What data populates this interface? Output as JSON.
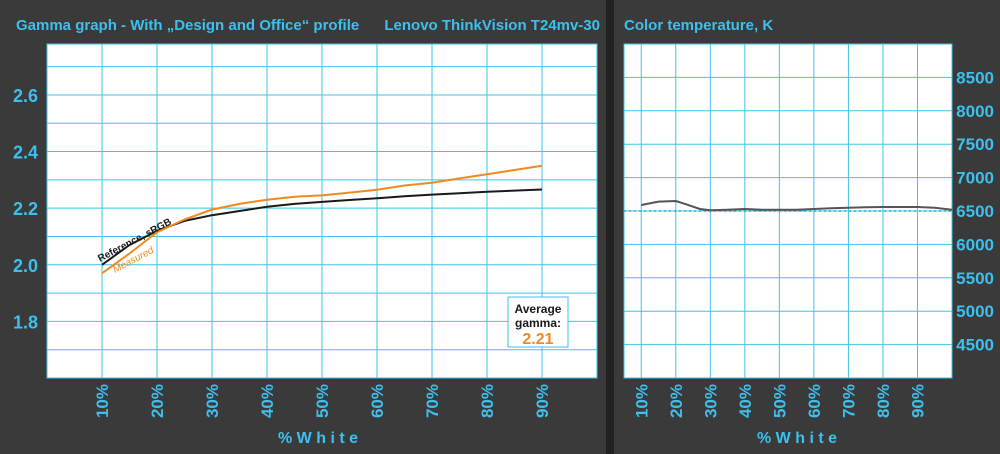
{
  "left_panel": {
    "title": "Gamma graph - With „Design and Office“ profile",
    "subtitle": "Lenovo ThinkVision T24mv-30",
    "xlabel": "% W h i t e",
    "curve_label_reference": "Reference, sRGB",
    "curve_label_measured": "Measured",
    "avg_label_line1": "Average",
    "avg_label_line2": "gamma:",
    "avg_value": "2.21"
  },
  "right_panel": {
    "title": "Color temperature, K",
    "xlabel": "% W h i t e"
  },
  "colors": {
    "background": "#3a3a3a",
    "plot_bg": "#ffffff",
    "grid": "#3fc3e8",
    "title_text": "#3cc0ee",
    "tick_text": "#3cc0ee",
    "reference_line": "#1a1a1a",
    "measured_line": "#f08a20",
    "temp_line": "#555555",
    "target_line": "#2aa8c8",
    "avg_box_border": "#3cc0ee",
    "avg_value": "#f08a20"
  },
  "chart_data": [
    {
      "type": "line",
      "title": "Gamma graph - With „Design and Office“ profile",
      "xlabel": "% W h i t e",
      "ylabel": "",
      "xlim": [
        0,
        100
      ],
      "ylim": [
        1.6,
        2.78
      ],
      "x_ticks": [
        "10%",
        "20%",
        "30%",
        "40%",
        "50%",
        "60%",
        "70%",
        "80%",
        "90%"
      ],
      "y_ticks": [
        "1.8",
        "2.0",
        "2.2",
        "2.4",
        "2.6"
      ],
      "series": [
        {
          "name": "Reference, sRGB",
          "x": [
            10,
            15,
            20,
            25,
            30,
            35,
            40,
            45,
            50,
            55,
            60,
            65,
            70,
            75,
            80,
            85,
            90
          ],
          "y": [
            2.0,
            2.07,
            2.12,
            2.155,
            2.175,
            2.19,
            2.205,
            2.215,
            2.222,
            2.229,
            2.235,
            2.242,
            2.248,
            2.253,
            2.258,
            2.262,
            2.266
          ]
        },
        {
          "name": "Measured",
          "x": [
            10,
            15,
            20,
            25,
            30,
            35,
            40,
            45,
            50,
            55,
            60,
            65,
            70,
            75,
            80,
            85,
            90
          ],
          "y": [
            1.97,
            2.04,
            2.115,
            2.16,
            2.195,
            2.215,
            2.23,
            2.24,
            2.245,
            2.255,
            2.265,
            2.28,
            2.29,
            2.305,
            2.32,
            2.335,
            2.35
          ]
        }
      ],
      "annotations": [
        "Average",
        "gamma:",
        "2.21"
      ],
      "grid": true
    },
    {
      "type": "line",
      "title": "Color temperature, K",
      "xlabel": "% W h i t e",
      "ylabel": "",
      "xlim": [
        5,
        100
      ],
      "ylim": [
        4000,
        9000
      ],
      "x_ticks": [
        "10%",
        "20%",
        "30%",
        "40%",
        "50%",
        "60%",
        "70%",
        "80%",
        "90%"
      ],
      "y_ticks": [
        "4500",
        "5000",
        "5500",
        "6000",
        "6500",
        "7000",
        "7500",
        "8000",
        "8500"
      ],
      "target_value": 6500,
      "series": [
        {
          "name": "",
          "x": [
            10,
            15,
            20,
            23,
            27,
            30,
            35,
            40,
            45,
            50,
            55,
            60,
            65,
            70,
            75,
            80,
            85,
            90,
            95,
            100
          ],
          "y": [
            6590,
            6640,
            6650,
            6600,
            6530,
            6510,
            6520,
            6530,
            6520,
            6520,
            6520,
            6530,
            6540,
            6550,
            6555,
            6560,
            6560,
            6560,
            6550,
            6520
          ]
        }
      ],
      "grid": true
    }
  ]
}
